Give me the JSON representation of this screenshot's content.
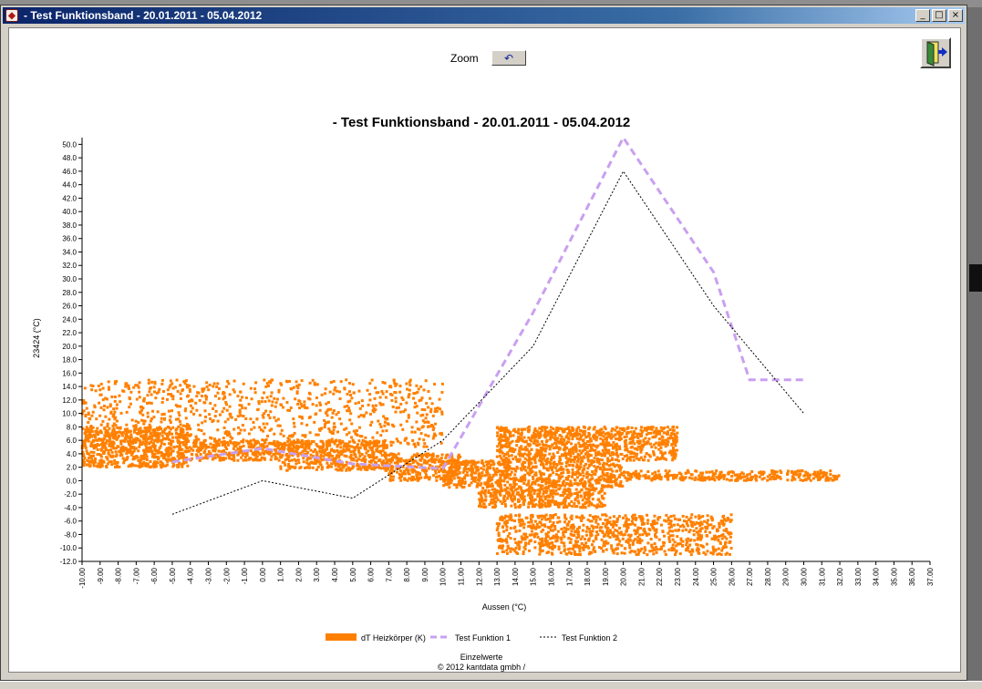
{
  "window": {
    "title": "- Test Funktionsband - 20.01.2011 - 05.04.2012",
    "controls": {
      "minimize": "_",
      "maximize": "□",
      "close": "×"
    }
  },
  "toolbar": {
    "zoom_label": "Zoom",
    "zoom_reset_glyph": "↶",
    "exit_icon": "exit-door-icon"
  },
  "chart_data": {
    "type": "scatter",
    "title": "- Test Funktionsband - 20.01.2011 - 05.04.2012",
    "xlabel": "Aussen (°C)",
    "ylabel": "23424 (°C)",
    "xlim": [
      -10,
      37
    ],
    "ylim": [
      -12,
      51
    ],
    "x_ticks": [
      "-10.00",
      "-9.00",
      "-8.00",
      "-7.00",
      "-6.00",
      "-5.00",
      "-4.00",
      "-3.00",
      "-2.00",
      "-1.00",
      "0.00",
      "1.00",
      "2.00",
      "3.00",
      "4.00",
      "5.00",
      "6.00",
      "7.00",
      "8.00",
      "9.00",
      "10.00",
      "11.00",
      "12.00",
      "13.00",
      "14.00",
      "15.00",
      "16.00",
      "17.00",
      "18.00",
      "19.00",
      "20.00",
      "21.00",
      "22.00",
      "23.00",
      "24.00",
      "25.00",
      "26.00",
      "27.00",
      "28.00",
      "29.00",
      "30.00",
      "31.00",
      "32.00",
      "33.00",
      "34.00",
      "35.00",
      "36.00",
      "37.00"
    ],
    "y_ticks": [
      "50.0",
      "48.0",
      "46.0",
      "44.0",
      "42.0",
      "40.0",
      "38.0",
      "36.0",
      "34.0",
      "32.0",
      "30.0",
      "28.0",
      "26.0",
      "24.0",
      "22.0",
      "20.0",
      "18.0",
      "16.0",
      "14.0",
      "12.0",
      "10.0",
      "8.0",
      "6.0",
      "4.0",
      "2.0",
      "0.0",
      "-2.0",
      "-4.0",
      "-6.0",
      "-8.0",
      "-10.0",
      "-12.0"
    ],
    "grid": false,
    "legend_position": "bottom",
    "series": [
      {
        "name": "dT Heizkörper (K)",
        "kind": "scatter",
        "color": "#ff8000",
        "clusters": [
          {
            "x": [
              -10,
              -4
            ],
            "y": [
              2,
              8
            ]
          },
          {
            "x": [
              -4,
              1
            ],
            "y": [
              3,
              6
            ]
          },
          {
            "x": [
              1,
              7
            ],
            "y": [
              1.5,
              6
            ]
          },
          {
            "x": [
              -10,
              10
            ],
            "y": [
              5,
              15
            ]
          },
          {
            "x": [
              7,
              11
            ],
            "y": [
              0,
              4
            ]
          },
          {
            "x": [
              10,
              20
            ],
            "y": [
              -1,
              3
            ]
          },
          {
            "x": [
              20,
              32
            ],
            "y": [
              0,
              1.5
            ]
          },
          {
            "x": [
              13,
              23
            ],
            "y": [
              3,
              8
            ]
          },
          {
            "x": [
              13,
              26
            ],
            "y": [
              -11,
              -5
            ]
          },
          {
            "x": [
              12,
              19
            ],
            "y": [
              -4,
              -1
            ]
          }
        ]
      },
      {
        "name": "Test Funktion 1",
        "kind": "line",
        "style": "dashed",
        "color": "#c9a0f0",
        "x": [
          -5,
          0,
          5,
          10,
          15,
          20,
          25,
          27,
          30
        ],
        "y": [
          2.8,
          4.8,
          2.5,
          1.8,
          25,
          51,
          31,
          15,
          15
        ]
      },
      {
        "name": "Test Funktion 2",
        "kind": "line",
        "style": "dotted",
        "color": "#000000",
        "x": [
          -5,
          0,
          5,
          10,
          15,
          20,
          25,
          30
        ],
        "y": [
          -5,
          0,
          -2.6,
          6,
          20,
          46,
          26,
          10
        ]
      }
    ],
    "footer": [
      "Einzelwerte",
      "© 2012 kantdata gmbh /"
    ]
  }
}
